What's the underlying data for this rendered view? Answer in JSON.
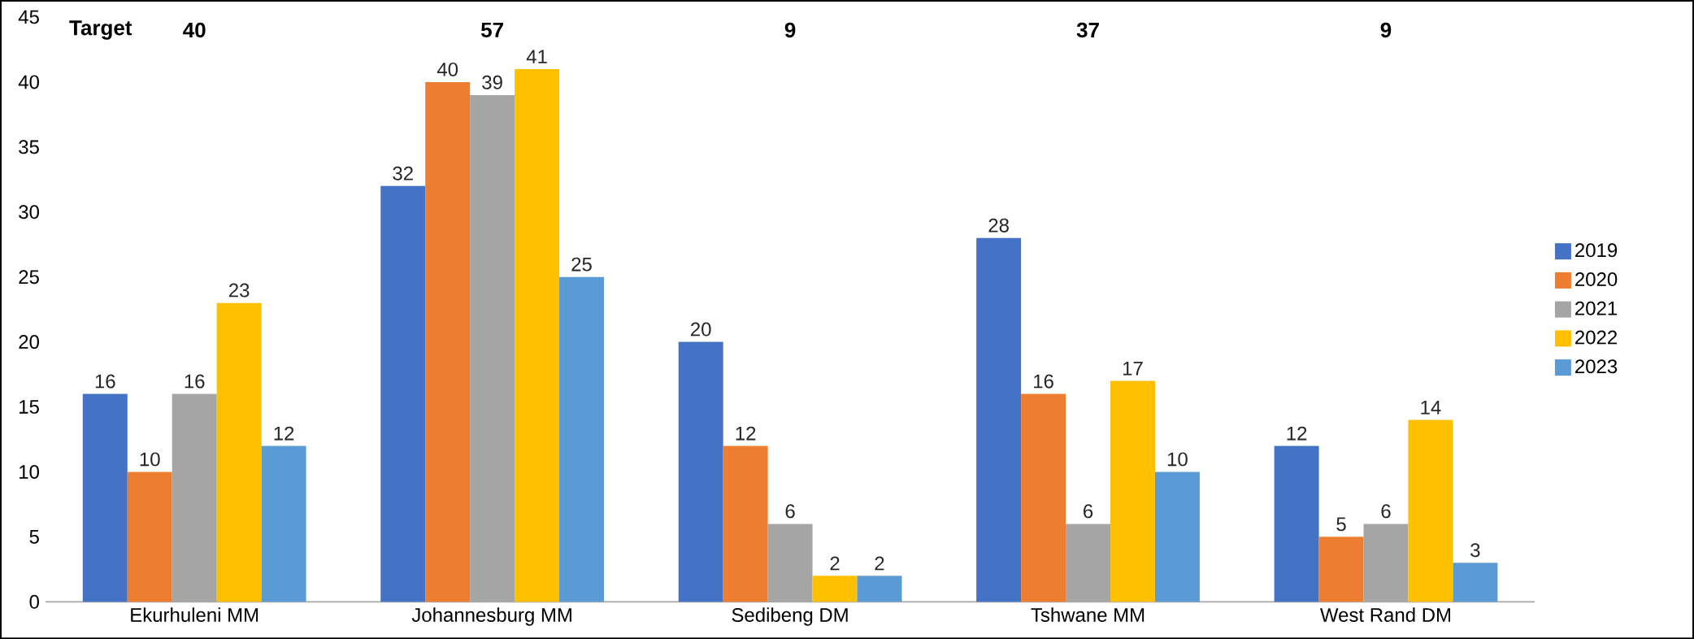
{
  "chart_data": {
    "type": "bar",
    "categories": [
      "Ekurhuleni MM",
      "Johannesburg MM",
      "Sedibeng DM",
      "Tshwane MM",
      "West Rand DM"
    ],
    "series": [
      {
        "name": "2019",
        "color": "#4472c4",
        "values": [
          16,
          32,
          20,
          28,
          12
        ]
      },
      {
        "name": "2020",
        "color": "#ed7d31",
        "values": [
          10,
          40,
          12,
          16,
          5
        ]
      },
      {
        "name": "2021",
        "color": "#a5a5a5",
        "values": [
          16,
          39,
          6,
          6,
          6
        ]
      },
      {
        "name": "2022",
        "color": "#ffc000",
        "values": [
          23,
          41,
          2,
          17,
          14
        ]
      },
      {
        "name": "2023",
        "color": "#5b9bd5",
        "values": [
          12,
          25,
          2,
          10,
          3
        ]
      }
    ],
    "ylim": [
      0,
      45
    ],
    "yticks": [
      0,
      5,
      10,
      15,
      20,
      25,
      30,
      35,
      40,
      45
    ],
    "legend": "right",
    "data_labels": true,
    "annotations": [
      "Target",
      "40",
      "57",
      "9",
      "37",
      "9"
    ]
  }
}
